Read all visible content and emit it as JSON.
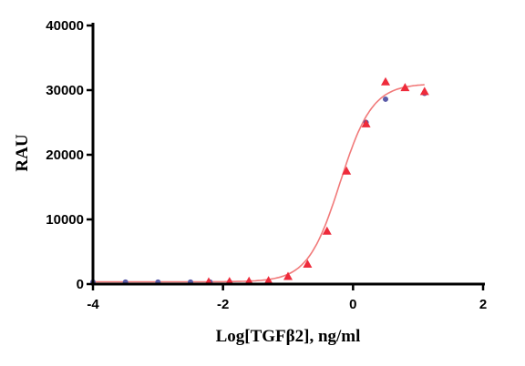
{
  "chart_data": {
    "type": "scatter",
    "xlabel": "Log[TGFβ2], ng/ml",
    "ylabel": "RAU",
    "xlim": [
      -4,
      2
    ],
    "ylim": [
      0,
      40000
    ],
    "x_ticks": [
      -4,
      -2,
      0,
      2
    ],
    "y_ticks": [
      0,
      10000,
      20000,
      30000,
      40000
    ],
    "x_tick_labels": [
      "-4",
      "-2",
      "0",
      "2"
    ],
    "y_tick_labels": [
      "0",
      "10000",
      "20000",
      "30000",
      "40000"
    ],
    "grid": false,
    "legend": "none",
    "series": [
      {
        "marker": "triangle",
        "color": "#ee2b3b",
        "x": [
          -2.22,
          -1.9,
          -1.6,
          -1.3,
          -1.0,
          -0.7,
          -0.4,
          -0.1,
          0.2,
          0.5,
          0.8,
          1.1
        ],
        "y": [
          350,
          400,
          450,
          550,
          1200,
          3100,
          8200,
          17500,
          24800,
          31300,
          30400,
          29800
        ]
      },
      {
        "marker": "circle",
        "color": "#5a5aa8",
        "x": [
          -4.0,
          -3.5,
          -3.0,
          -2.5,
          -2.2,
          -1.9,
          -1.6,
          0.2,
          0.5,
          1.1
        ],
        "y": [
          300,
          300,
          300,
          300,
          300,
          300,
          300,
          25000,
          28600,
          29500
        ]
      }
    ],
    "fit_curve": {
      "color": "#f17a7a",
      "x_range": [
        -4,
        1.1
      ],
      "bottom": 350,
      "top": 31000,
      "log_ec50": -0.2,
      "hill": 1.75
    }
  }
}
